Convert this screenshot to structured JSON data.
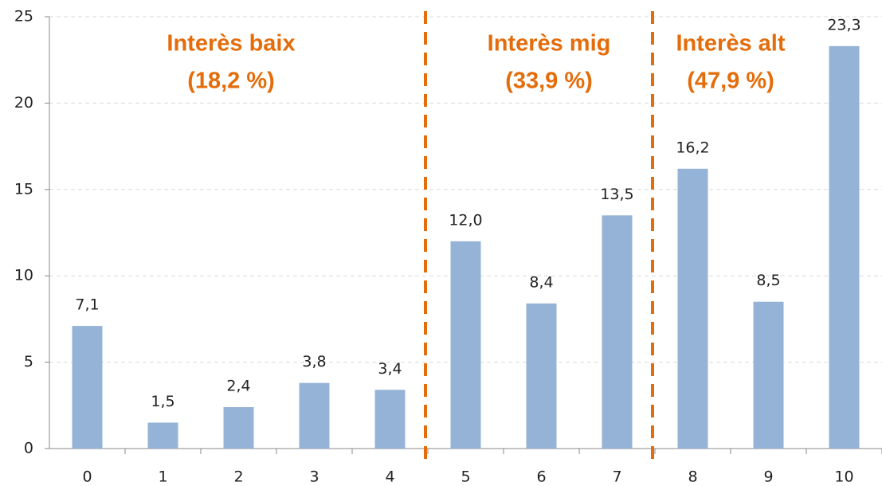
{
  "chart_data": {
    "type": "bar",
    "categories": [
      "0",
      "1",
      "2",
      "3",
      "4",
      "5",
      "6",
      "7",
      "8",
      "9",
      "10"
    ],
    "values": [
      7.1,
      1.5,
      2.4,
      3.8,
      3.4,
      12.0,
      8.4,
      13.5,
      16.2,
      8.5,
      23.3
    ],
    "value_labels": [
      "7,1",
      "1,5",
      "2,4",
      "3,8",
      "3,4",
      "12,0",
      "8,4",
      "13,5",
      "16,2",
      "8,5",
      "23,3"
    ],
    "color": "#95b3d7",
    "ylim": [
      0,
      25
    ],
    "yticks": [
      0,
      5,
      10,
      15,
      20,
      25
    ],
    "grid": true,
    "annotations": [
      {
        "lines": [
          "Interès baix",
          "(18,2 %)"
        ],
        "color": "#e46c0a"
      },
      {
        "lines": [
          "Interès mig",
          "(33,9 %)"
        ],
        "color": "#e46c0a"
      },
      {
        "lines": [
          "Interès alt",
          "(47,9 %)"
        ],
        "color": "#e46c0a"
      }
    ]
  }
}
